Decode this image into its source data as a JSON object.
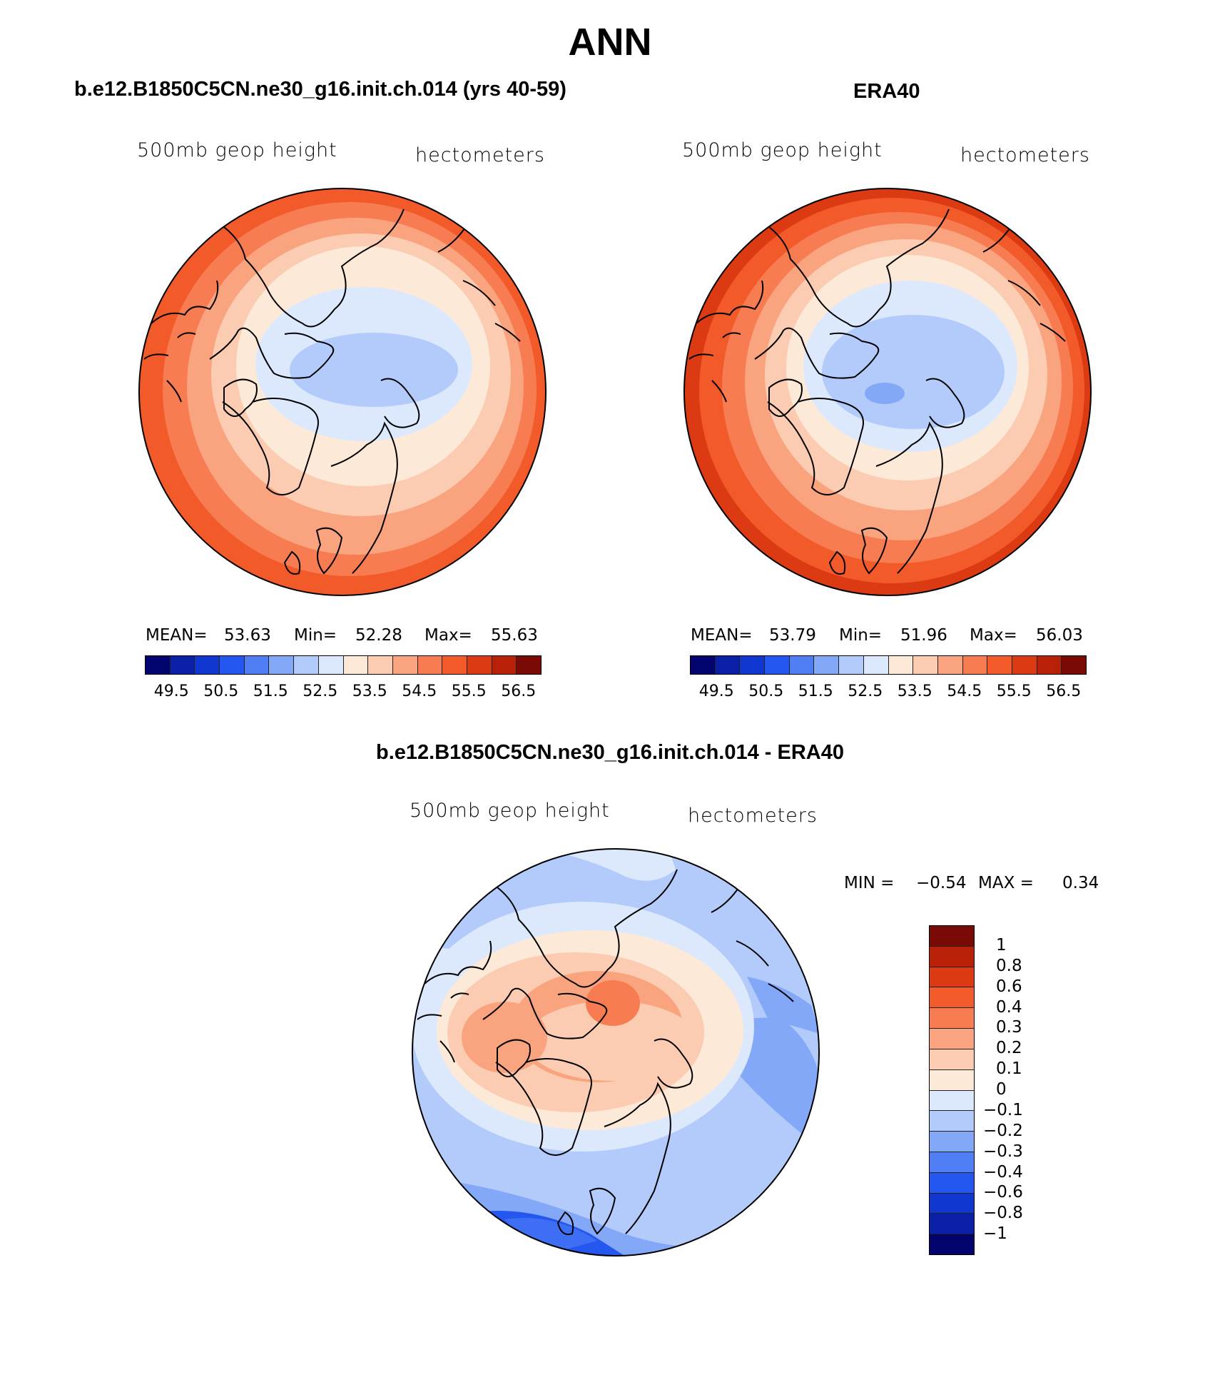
{
  "season": "ANN",
  "panels": [
    {
      "title": "b.e12.B1850C5CN.ne30_g16.init.ch.014 (yrs 40-59)",
      "left_label": "500mb geop height",
      "right_label": "hectometers",
      "stats": {
        "mean_label": "MEAN=",
        "mean": "53.63",
        "min_label": "Min=",
        "min": "52.28",
        "max_label": "Max=",
        "max": "55.63"
      }
    },
    {
      "title": "ERA40",
      "left_label": "500mb geop height",
      "right_label": "hectometers",
      "stats": {
        "mean_label": "MEAN=",
        "mean": "53.79",
        "min_label": "Min=",
        "min": "51.96",
        "max_label": "Max=",
        "max": "56.03"
      }
    },
    {
      "title": "b.e12.B1850C5CN.ne30_g16.init.ch.014 - ERA40",
      "left_label": "500mb geop height",
      "right_label": "hectometers",
      "stats": {
        "min_label": "MIN =",
        "min": "−0.54",
        "max_label": "MAX =",
        "max": "0.34"
      }
    }
  ],
  "colorbar_abs": {
    "labels": [
      "49.5",
      "50.5",
      "51.5",
      "52.5",
      "53.5",
      "54.5",
      "55.5",
      "56.5"
    ],
    "colors": [
      "#03036e",
      "#0a1ea6",
      "#0f36cf",
      "#2456f0",
      "#4f7ef5",
      "#84a8f8",
      "#b3cbfa",
      "#dce9fd",
      "#fde9d8",
      "#fbccb2",
      "#f9a37f",
      "#f77c52",
      "#f25a2a",
      "#dc3a12",
      "#b82008",
      "#7a0a05"
    ]
  },
  "colorbar_diff": {
    "labels": [
      "1",
      "0.8",
      "0.6",
      "0.4",
      "0.3",
      "0.2",
      "0.1",
      "0",
      "−0.1",
      "−0.2",
      "−0.3",
      "−0.4",
      "−0.6",
      "−0.8",
      "−1"
    ],
    "colors": [
      "#7a0a05",
      "#b82008",
      "#dc3a12",
      "#f25a2a",
      "#f77c52",
      "#f9a37f",
      "#fbccb2",
      "#fde9d8",
      "#dce9fd",
      "#b3cbfa",
      "#84a8f8",
      "#4f7ef5",
      "#2456f0",
      "#0f36cf",
      "#0a1ea6",
      "#03036e"
    ]
  }
}
